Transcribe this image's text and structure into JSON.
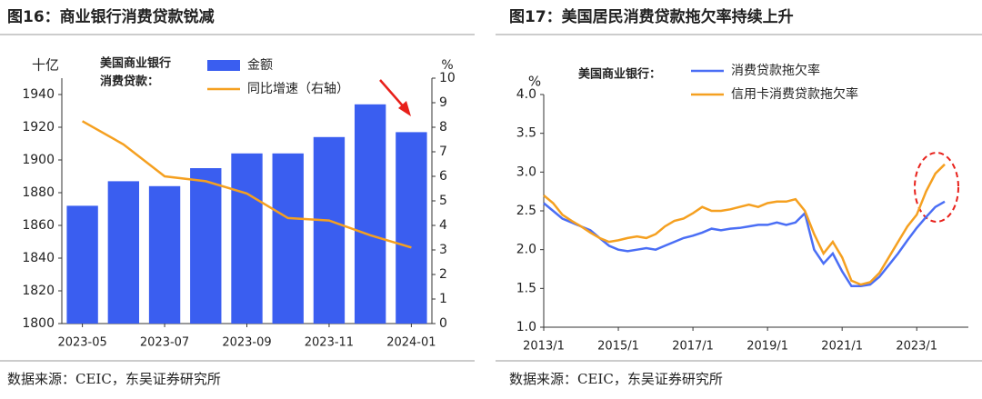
{
  "chart_data": [
    {
      "type": "bar",
      "title": "图16：商业银行消费贷款锐减",
      "source": "数据来源：CEIC，东吴证券研究所",
      "legend_title": [
        "美国商业银行",
        "消费贷款："
      ],
      "y_label": "十亿",
      "y2_label": "%",
      "categories": [
        "2023-05",
        null,
        "2023-07",
        null,
        "2023-09",
        null,
        "2023-11",
        null,
        "2024-01"
      ],
      "series": [
        {
          "name": "金额",
          "color": "#3a5ef0",
          "values": [
            1872,
            1887,
            1884,
            1895,
            1904,
            1904,
            1914,
            1934,
            1917
          ]
        },
        {
          "name": "同比增速（右轴）",
          "color": "#f5a020",
          "type": "line",
          "axis": "y2",
          "values": [
            8.25,
            7.3,
            6.0,
            5.8,
            5.3,
            4.3,
            4.2,
            3.6,
            3.1
          ]
        }
      ],
      "ylim": [
        1800,
        1950
      ],
      "yticks": [
        1800,
        1820,
        1840,
        1860,
        1880,
        1900,
        1920,
        1940
      ],
      "y2lim": [
        0,
        10
      ],
      "y2ticks": [
        0,
        1,
        2,
        3,
        4,
        5,
        6,
        7,
        8,
        9,
        10
      ]
    },
    {
      "type": "line",
      "title": "图17：美国居民消费贷款拖欠率持续上升",
      "source": "数据来源：CEIC，东吴证券研究所",
      "legend_title": [
        "美国商业银行："
      ],
      "y_label": "%",
      "categories": [
        "2013/1",
        null,
        null,
        null,
        null,
        null,
        null,
        null,
        "2015/1",
        null,
        null,
        null,
        null,
        null,
        null,
        null,
        "2017/1",
        null,
        null,
        null,
        null,
        null,
        null,
        null,
        "2019/1",
        null,
        null,
        null,
        null,
        null,
        null,
        null,
        "2021/1",
        null,
        null,
        null,
        null,
        null,
        null,
        null,
        "2023/1",
        null,
        null,
        null
      ],
      "series": [
        {
          "name": "消费贷款拖欠率",
          "color": "#4a6ef5",
          "values": [
            2.6,
            2.5,
            2.4,
            2.35,
            2.3,
            2.25,
            2.15,
            2.05,
            2.0,
            1.98,
            2.0,
            2.02,
            2.0,
            2.05,
            2.1,
            2.15,
            2.18,
            2.22,
            2.27,
            2.25,
            2.27,
            2.28,
            2.3,
            2.32,
            2.32,
            2.35,
            2.32,
            2.35,
            2.47,
            2.0,
            1.82,
            1.95,
            1.72,
            1.53,
            1.53,
            1.55,
            1.65,
            1.8,
            1.95,
            2.12,
            2.28,
            2.42,
            2.55,
            2.62
          ]
        },
        {
          "name": "信用卡消费贷款拖欠率",
          "color": "#f5a020",
          "values": [
            2.7,
            2.6,
            2.45,
            2.37,
            2.3,
            2.22,
            2.15,
            2.1,
            2.12,
            2.15,
            2.17,
            2.15,
            2.2,
            2.3,
            2.37,
            2.4,
            2.47,
            2.55,
            2.5,
            2.5,
            2.52,
            2.55,
            2.58,
            2.55,
            2.6,
            2.62,
            2.62,
            2.65,
            2.5,
            2.2,
            1.95,
            2.1,
            1.9,
            1.6,
            1.55,
            1.58,
            1.7,
            1.9,
            2.1,
            2.3,
            2.45,
            2.75,
            2.98,
            3.1
          ]
        }
      ],
      "ylim": [
        1.0,
        4.0
      ],
      "yticks": [
        {
          "value": 1,
          "label": "1.0"
        },
        1.5,
        {
          "value": 2,
          "label": "2.0"
        },
        2.5,
        {
          "value": 3,
          "label": "3.0"
        },
        3.5,
        {
          "value": 4,
          "label": "4.0"
        }
      ]
    }
  ]
}
